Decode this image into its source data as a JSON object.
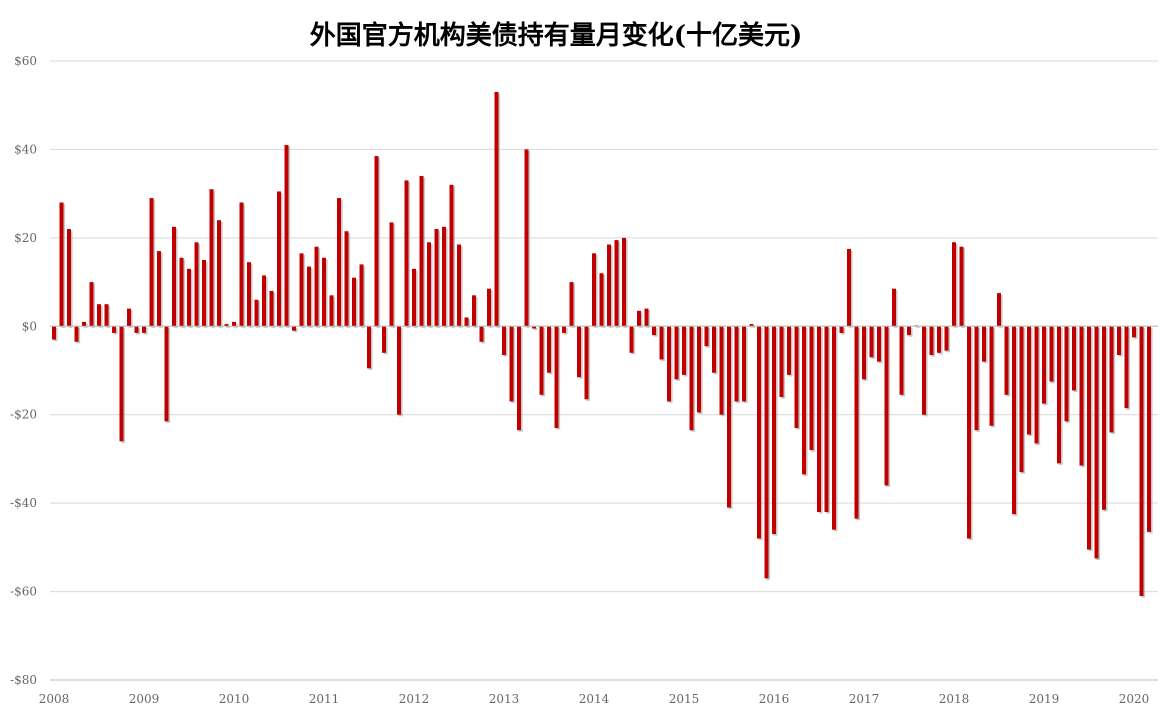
{
  "chart_data": {
    "type": "bar",
    "title": "外国官方机构美债持有量月变化(十亿美元)",
    "xlabel": "",
    "ylabel": "",
    "ylim": [
      -80,
      60
    ],
    "y_ticks": [
      60,
      40,
      20,
      0,
      -20,
      -40,
      -60,
      -80
    ],
    "y_tick_labels": [
      "$60",
      "$40",
      "$20",
      "$0",
      "-$20",
      "-$40",
      "-$60",
      "-$80"
    ],
    "x_start": "2008-01",
    "x_end": "2020-02",
    "x_tick_labels": [
      "2008",
      "2009",
      "2010",
      "2011",
      "2012",
      "2013",
      "2014",
      "2015",
      "2016",
      "2017",
      "2018",
      "2019",
      "2020"
    ],
    "grid": true,
    "legend": "none",
    "bar_color": "#c00000",
    "series": [
      {
        "values": [
          -3,
          28,
          22,
          -3.5,
          1,
          10,
          5,
          5,
          -1.5,
          -26,
          4,
          -1.5,
          -1.5,
          29,
          17,
          -21.5,
          22.5,
          15.5,
          13,
          19,
          15,
          31,
          24,
          0.5,
          1,
          28,
          14.5,
          6,
          11.5,
          8,
          30.5,
          41,
          -1,
          16.5,
          13.5,
          18,
          15.5,
          7,
          29,
          21.5,
          11,
          14,
          -9.5,
          38.5,
          -6,
          23.5,
          -20,
          33,
          13,
          34,
          19,
          22,
          22.5,
          32,
          18.5,
          2,
          7,
          -3.5,
          8.5,
          53,
          -6.5,
          -17,
          -23.5,
          40,
          -0.5,
          -15.5,
          -10.5,
          -23,
          -1.5,
          10,
          -11.5,
          -16.5,
          16.5,
          12,
          18.5,
          19.5,
          20,
          -6,
          3.5,
          4,
          -2,
          -7.5,
          -17,
          -12,
          -11,
          -23.5,
          -19.5,
          -4.5,
          -10.5,
          -20,
          -41,
          -17,
          -17,
          0.5,
          -48,
          -57,
          -47,
          -16,
          -11,
          -23,
          -33.5,
          -28,
          -42,
          -42,
          -46,
          -1.5,
          17.5,
          -43.5,
          -12,
          -7,
          -8,
          -36,
          8.5,
          -15.5,
          -2,
          0.2,
          -20,
          -6.5,
          -6,
          -5.5,
          19,
          18,
          -48,
          -23.5,
          -8,
          -22.5,
          7.5,
          -15.5,
          -42.5,
          -33,
          -24.5,
          -26.5,
          -17.5,
          -12.5,
          -31,
          -21.5,
          -14.5,
          -31.5,
          -50.5,
          -52.5,
          -41.5,
          -24,
          -6.5,
          -18.5,
          -2.5,
          -61,
          -46.5
        ]
      }
    ]
  }
}
